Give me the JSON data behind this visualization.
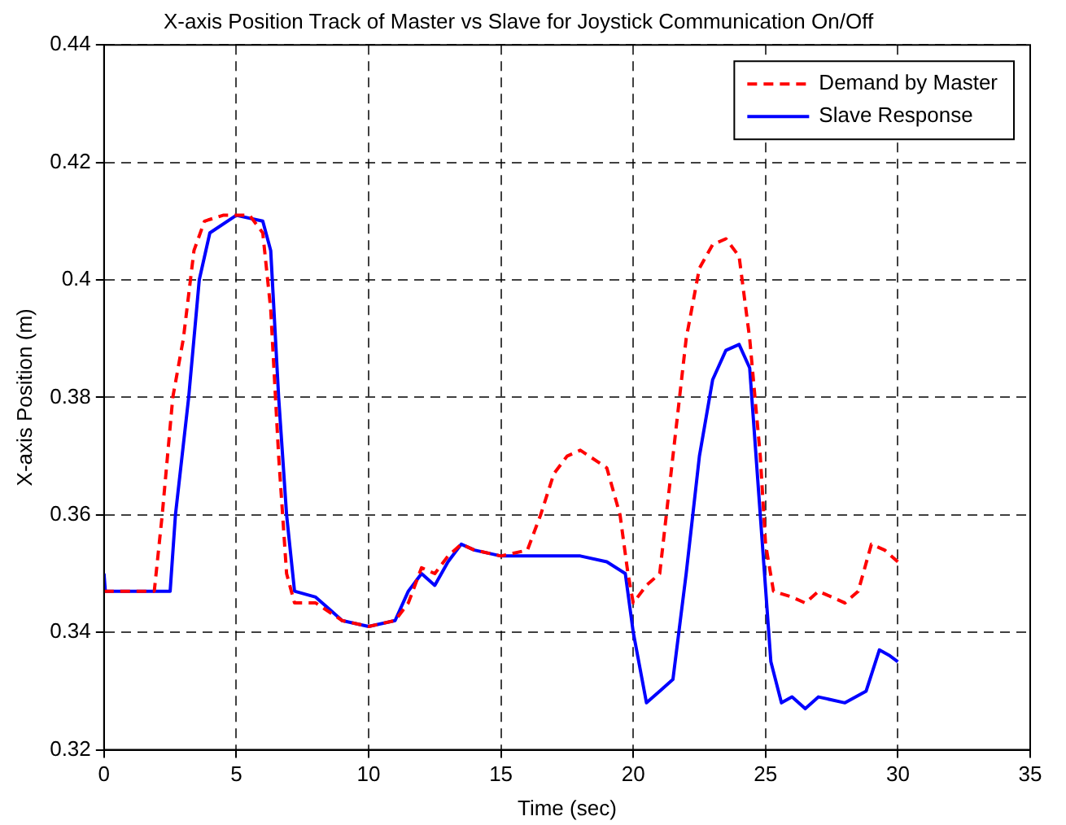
{
  "chart_data": {
    "type": "line",
    "title": "X-axis Position Track of Master vs Slave for Joystick Communication On/Off",
    "xlabel": "Time (sec)",
    "ylabel": "X-axis Position (m)",
    "xlim": [
      0,
      35
    ],
    "xticks": [
      0,
      5,
      10,
      15,
      20,
      25,
      30,
      35
    ],
    "ylim": [
      0.32,
      0.44
    ],
    "yticks": [
      0.32,
      0.34,
      0.36,
      0.38,
      0.4,
      0.42,
      0.44
    ],
    "grid": true,
    "legend": "top right",
    "marker": "none",
    "series": [
      {
        "name": "Demand by Master",
        "color": "#ff0000",
        "line_style": "dashed",
        "x": [
          0,
          1.9,
          2.2,
          2.6,
          3.0,
          3.4,
          3.8,
          4.5,
          5.5,
          6.0,
          6.3,
          6.6,
          6.9,
          7.2,
          8,
          9,
          10,
          11,
          11.5,
          12,
          12.5,
          13,
          13.5,
          14,
          15,
          16,
          16.5,
          17,
          17.5,
          18,
          19,
          19.5,
          19.8,
          20,
          20.5,
          21,
          21.5,
          22,
          22.5,
          23,
          23.5,
          24,
          24.4,
          24.8,
          25,
          25.3,
          26,
          26.5,
          27,
          28,
          28.5,
          29,
          29.5,
          30
        ],
        "values": [
          0.347,
          0.347,
          0.36,
          0.38,
          0.39,
          0.405,
          0.41,
          0.411,
          0.411,
          0.408,
          0.395,
          0.37,
          0.35,
          0.345,
          0.345,
          0.342,
          0.341,
          0.342,
          0.345,
          0.351,
          0.35,
          0.353,
          0.355,
          0.354,
          0.353,
          0.354,
          0.36,
          0.367,
          0.37,
          0.371,
          0.368,
          0.36,
          0.35,
          0.345,
          0.348,
          0.35,
          0.37,
          0.39,
          0.402,
          0.406,
          0.407,
          0.404,
          0.39,
          0.37,
          0.355,
          0.347,
          0.346,
          0.345,
          0.347,
          0.345,
          0.347,
          0.355,
          0.354,
          0.352
        ]
      },
      {
        "name": "Slave Response",
        "color": "#0000ff",
        "line_style": "solid",
        "x": [
          0,
          0.05,
          2.5,
          2.7,
          3.2,
          3.6,
          4.0,
          5,
          6,
          6.3,
          6.6,
          6.9,
          7.2,
          8,
          8.5,
          9,
          10,
          11,
          11.5,
          12,
          12.5,
          13,
          13.5,
          14,
          15,
          18,
          19,
          19.7,
          20,
          20.5,
          21,
          21.5,
          22,
          22.5,
          23,
          23.5,
          24,
          24.4,
          24.8,
          25.2,
          25.6,
          26,
          26.5,
          27,
          28,
          28.8,
          29.3,
          29.7,
          30
        ],
        "values": [
          0.35,
          0.347,
          0.347,
          0.36,
          0.38,
          0.4,
          0.408,
          0.411,
          0.41,
          0.405,
          0.38,
          0.36,
          0.347,
          0.346,
          0.344,
          0.342,
          0.341,
          0.342,
          0.347,
          0.35,
          0.348,
          0.352,
          0.355,
          0.354,
          0.353,
          0.353,
          0.352,
          0.35,
          0.34,
          0.328,
          0.33,
          0.332,
          0.35,
          0.37,
          0.383,
          0.388,
          0.389,
          0.385,
          0.36,
          0.335,
          0.328,
          0.329,
          0.327,
          0.329,
          0.328,
          0.33,
          0.337,
          0.336,
          0.335
        ]
      }
    ]
  }
}
